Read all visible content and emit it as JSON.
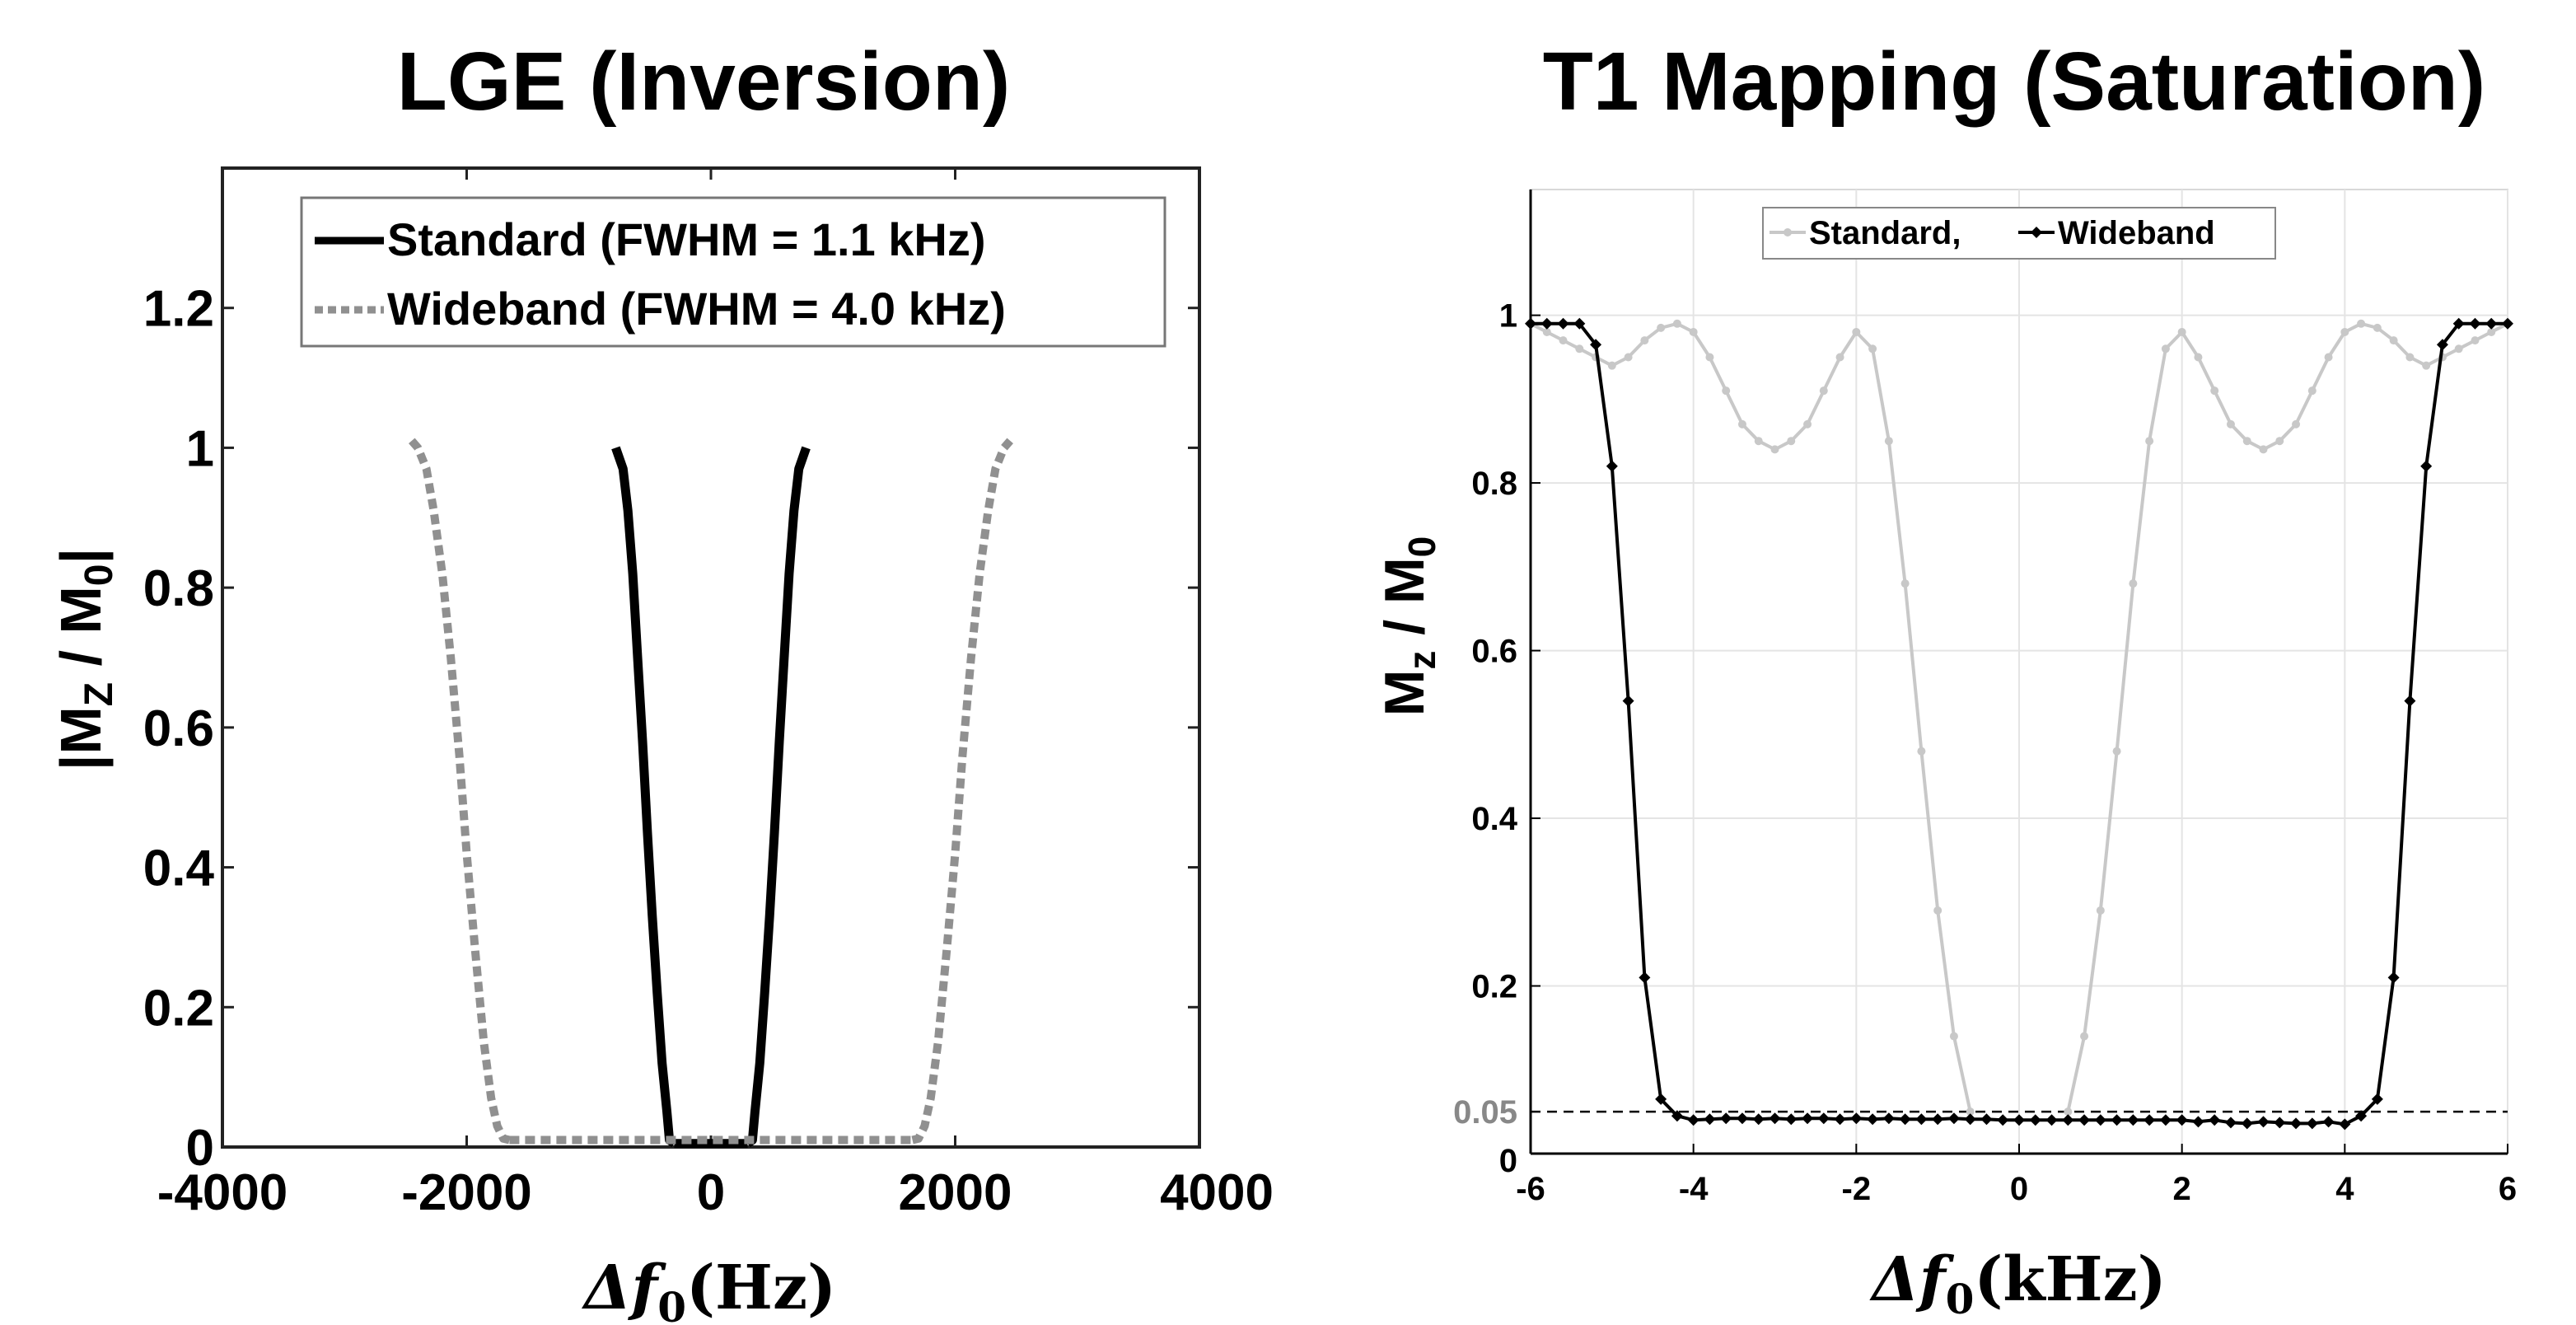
{
  "chart_data": [
    {
      "type": "line",
      "title": "LGE (Inversion)",
      "xlabel_symbol": "Δf",
      "xlabel_subscript": "0",
      "xlabel_unit": "(Hz)",
      "ylabel": "|M",
      "ylabel_sub1": "Z",
      "ylabel_mid": " / M",
      "ylabel_sub2": "0",
      "ylabel_end": "|",
      "xlim": [
        -4000,
        4000
      ],
      "ylim": [
        0,
        1.4
      ],
      "xticks": [
        -4000,
        -2000,
        0,
        2000,
        4000
      ],
      "xtick_labels": [
        "-4000",
        "-2000",
        "0",
        "2000",
        "4000"
      ],
      "yticks": [
        0,
        0.2,
        0.4,
        0.6,
        0.8,
        1,
        1.2
      ],
      "ytick_labels": [
        "0",
        "0.2",
        "0.4",
        "0.6",
        "0.8",
        "1",
        "1.2"
      ],
      "grid": false,
      "legend_position": "top-right",
      "series": [
        {
          "name": "Standard (FWHM = 1.1 kHz)",
          "style": "solid",
          "color": "#000000",
          "x": [
            -780,
            -720,
            -680,
            -640,
            -600,
            -560,
            -520,
            -480,
            -440,
            -400,
            -360,
            -340,
            -300,
            300,
            340,
            360,
            400,
            440,
            480,
            520,
            560,
            600,
            640,
            680,
            720,
            780
          ],
          "y": [
            1.0,
            0.97,
            0.91,
            0.82,
            0.7,
            0.58,
            0.45,
            0.33,
            0.22,
            0.12,
            0.05,
            0.01,
            0.005,
            0.005,
            0.01,
            0.05,
            0.12,
            0.22,
            0.33,
            0.45,
            0.58,
            0.7,
            0.82,
            0.91,
            0.97,
            1.0
          ]
        },
        {
          "name": "Wideband (FWHM = 4.0 kHz)",
          "style": "dotted",
          "color": "#909090",
          "x": [
            -2450,
            -2400,
            -2330,
            -2270,
            -2200,
            -2130,
            -2060,
            -2000,
            -1930,
            -1860,
            -1800,
            -1750,
            -1700,
            -1650,
            1650,
            1700,
            1750,
            1800,
            1860,
            1930,
            2000,
            2060,
            2130,
            2200,
            2270,
            2330,
            2400,
            2450
          ],
          "y": [
            1.01,
            1.0,
            0.97,
            0.91,
            0.82,
            0.7,
            0.56,
            0.42,
            0.28,
            0.15,
            0.07,
            0.03,
            0.012,
            0.01,
            0.01,
            0.012,
            0.03,
            0.07,
            0.15,
            0.28,
            0.42,
            0.56,
            0.7,
            0.82,
            0.91,
            0.97,
            1.0,
            1.01
          ]
        }
      ]
    },
    {
      "type": "line",
      "title": "T1 Mapping (Saturation)",
      "xlabel_symbol": "Δf",
      "xlabel_subscript": "0",
      "xlabel_unit": "(kHz)",
      "ylabel": "M",
      "ylabel_sub1": "z",
      "ylabel_mid": " / M",
      "ylabel_sub2": "0",
      "ylabel_end": "",
      "xlim": [
        -6,
        6
      ],
      "ylim": [
        0,
        1.15
      ],
      "xticks": [
        -6,
        -4,
        -2,
        0,
        2,
        4,
        6
      ],
      "xtick_labels": [
        "-6",
        "-4",
        "-2",
        "0",
        "2",
        "4",
        "6"
      ],
      "yticks": [
        0,
        0.2,
        0.4,
        0.6,
        0.8,
        1
      ],
      "ytick_labels": [
        "0",
        "0.2",
        "0.4",
        "0.6",
        "0.8",
        "1"
      ],
      "grid": true,
      "legend_position": "top-center",
      "reference_line": {
        "y": 0.05,
        "label": "0.05",
        "style": "dashed"
      },
      "series": [
        {
          "name": "Standard,",
          "color": "#c8c8c8",
          "marker": "dot",
          "x": [
            -6.0,
            -5.8,
            -5.6,
            -5.4,
            -5.2,
            -5.0,
            -4.8,
            -4.6,
            -4.4,
            -4.2,
            -4.0,
            -3.8,
            -3.6,
            -3.4,
            -3.2,
            -3.0,
            -2.8,
            -2.6,
            -2.4,
            -2.2,
            -2.0,
            -1.8,
            -1.6,
            -1.4,
            -1.2,
            -1.0,
            -0.8,
            -0.6,
            0.6,
            0.8,
            1.0,
            1.2,
            1.4,
            1.6,
            1.8,
            2.0,
            2.2,
            2.4,
            2.6,
            2.8,
            3.0,
            3.2,
            3.4,
            3.6,
            3.8,
            4.0,
            4.2,
            4.4,
            4.6,
            4.8,
            5.0,
            5.2,
            5.4,
            5.6,
            5.8,
            6.0
          ],
          "y": [
            0.99,
            0.98,
            0.97,
            0.96,
            0.95,
            0.94,
            0.95,
            0.97,
            0.985,
            0.99,
            0.98,
            0.95,
            0.91,
            0.87,
            0.85,
            0.84,
            0.85,
            0.87,
            0.91,
            0.95,
            0.98,
            0.96,
            0.85,
            0.68,
            0.48,
            0.29,
            0.14,
            0.05,
            0.05,
            0.14,
            0.29,
            0.48,
            0.68,
            0.85,
            0.96,
            0.98,
            0.95,
            0.91,
            0.87,
            0.85,
            0.84,
            0.85,
            0.87,
            0.91,
            0.95,
            0.98,
            0.99,
            0.985,
            0.97,
            0.95,
            0.94,
            0.95,
            0.96,
            0.97,
            0.98,
            0.99
          ]
        },
        {
          "name": "Wideband",
          "color": "#000000",
          "marker": "diamond",
          "x": [
            -6.0,
            -5.8,
            -5.6,
            -5.4,
            -5.2,
            -5.0,
            -4.8,
            -4.6,
            -4.4,
            -4.2,
            -4.0,
            -3.8,
            -3.6,
            -3.4,
            -3.2,
            -3.0,
            -2.8,
            -2.6,
            -2.4,
            -2.2,
            -2.0,
            -1.8,
            -1.6,
            -1.4,
            -1.2,
            -1.0,
            -0.8,
            -0.6,
            -0.4,
            -0.2,
            0.0,
            0.2,
            0.4,
            0.6,
            0.8,
            1.0,
            1.2,
            1.4,
            1.6,
            1.8,
            2.0,
            2.2,
            2.4,
            2.6,
            2.8,
            3.0,
            3.2,
            3.4,
            3.6,
            3.8,
            4.0,
            4.2,
            4.4,
            4.6,
            4.8,
            5.0,
            5.2,
            5.4,
            5.6,
            5.8,
            6.0
          ],
          "y": [
            0.99,
            0.99,
            0.99,
            0.99,
            0.965,
            0.82,
            0.54,
            0.21,
            0.065,
            0.045,
            0.04,
            0.041,
            0.042,
            0.042,
            0.041,
            0.042,
            0.041,
            0.042,
            0.042,
            0.041,
            0.042,
            0.041,
            0.042,
            0.041,
            0.041,
            0.041,
            0.042,
            0.041,
            0.041,
            0.04,
            0.04,
            0.04,
            0.04,
            0.04,
            0.04,
            0.04,
            0.04,
            0.04,
            0.04,
            0.04,
            0.04,
            0.038,
            0.04,
            0.037,
            0.036,
            0.038,
            0.037,
            0.036,
            0.036,
            0.038,
            0.035,
            0.045,
            0.065,
            0.21,
            0.54,
            0.82,
            0.965,
            0.99,
            0.99,
            0.99,
            0.99
          ]
        }
      ]
    }
  ]
}
